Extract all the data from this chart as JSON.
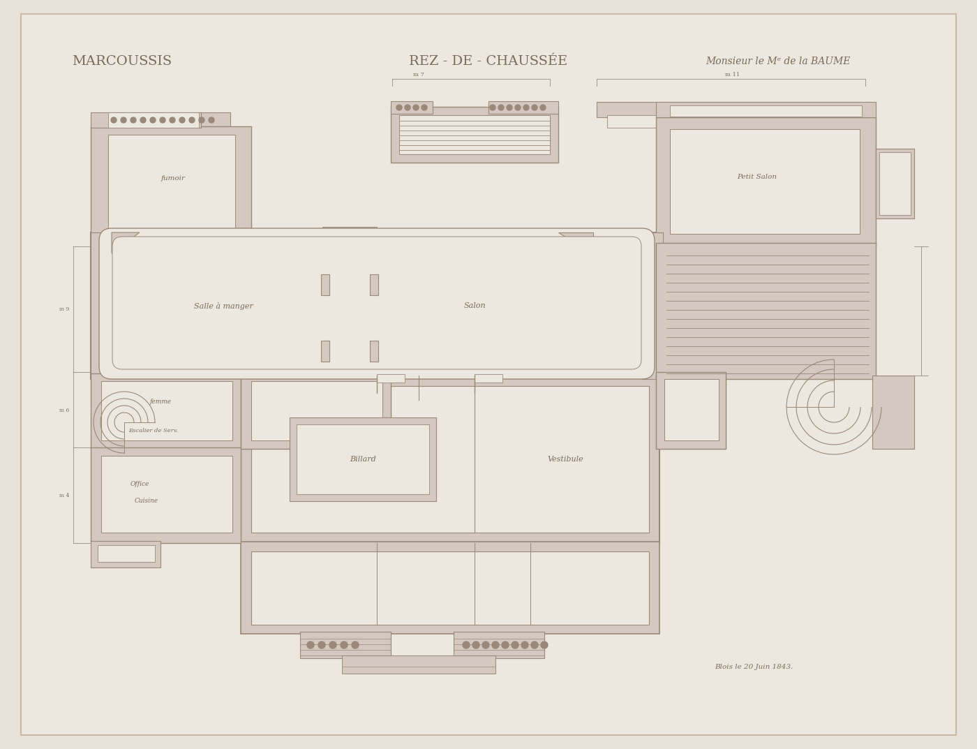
{
  "title_left": "MARCOUSSIS",
  "title_center": "REZ - DE - CHAUSSÉE",
  "title_right": "Monsieur le Mᵉ de la BAUME",
  "date_text": "Blois le 20 Juin 1843.",
  "bg_color": "#e8e2d8",
  "paper_color": "#ede8df",
  "wall_fill": "#d4c8c0",
  "wall_line": "#9a8878",
  "thin_line": "#9a8878",
  "room_fill": "#ede8df",
  "text_color": "#7a6a5a",
  "dim_color": "#9a8878"
}
